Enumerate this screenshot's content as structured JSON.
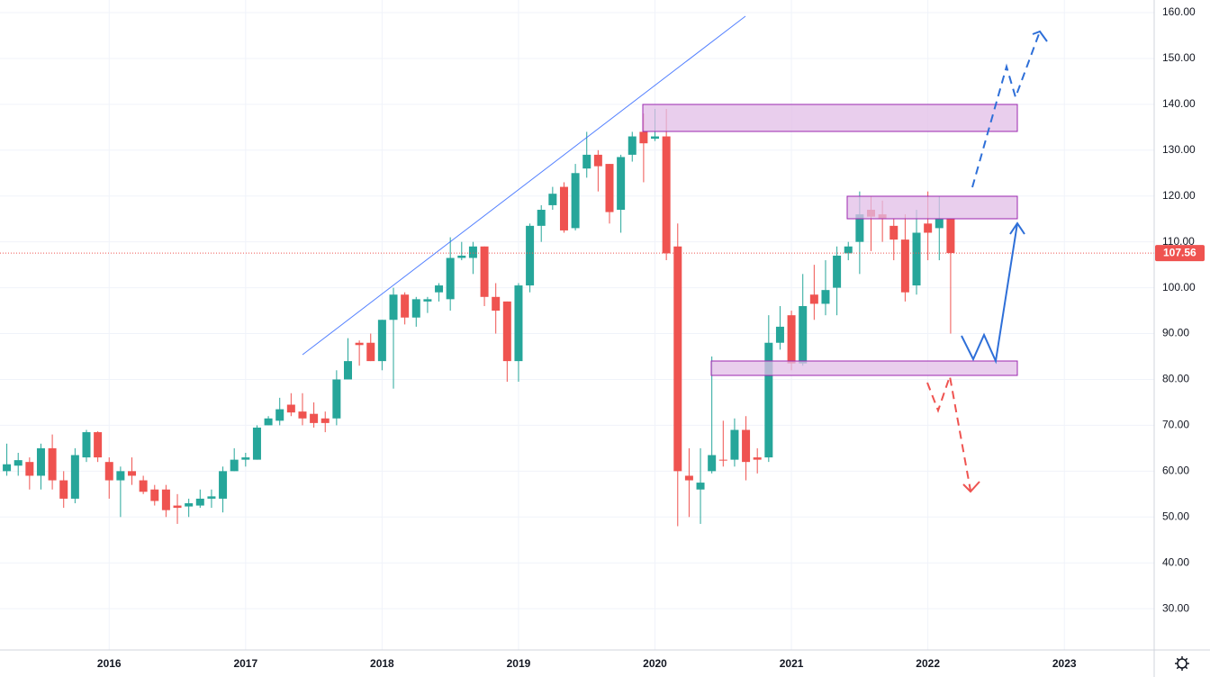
{
  "chart_data": {
    "type": "candlestick",
    "up_color": "#26a69a",
    "down_color": "#ef5350",
    "grid": true,
    "open": [
      60,
      61.2,
      62,
      59,
      65,
      58,
      54,
      63,
      68.5,
      62,
      58,
      60,
      58,
      56,
      56,
      52.5,
      52.3,
      52.5,
      54,
      54,
      60,
      62.5,
      62.5,
      70,
      71,
      74.5,
      73,
      72.5,
      71.5,
      71.5,
      80,
      88,
      88,
      84,
      93,
      98.5,
      93.5,
      97,
      99,
      97.5,
      106.5,
      106.5,
      109,
      98,
      97,
      84,
      100.5,
      113.5,
      118,
      122,
      113,
      126,
      129,
      127,
      117,
      129,
      134,
      132.5,
      133,
      109,
      59,
      56,
      60,
      62.5,
      62.5,
      69,
      63,
      63,
      88,
      94,
      83.5,
      98.5,
      96.5,
      100,
      107.5,
      110,
      117,
      116,
      113.5,
      110.5,
      100.5,
      114,
      113,
      115
    ],
    "high": [
      66,
      64,
      63,
      66,
      68,
      60,
      65,
      69,
      68.7,
      63,
      61,
      63,
      59,
      57,
      57,
      55,
      54,
      56,
      56,
      61,
      65,
      64,
      70,
      72,
      76,
      77,
      77,
      75,
      73,
      82,
      89,
      88.5,
      90,
      93,
      100,
      99,
      98,
      98,
      101,
      111,
      110,
      110,
      109,
      101,
      97,
      101,
      114,
      118,
      122,
      123,
      127,
      134,
      130,
      127,
      129,
      134,
      138,
      139,
      139,
      114,
      65,
      65,
      85,
      71,
      71.5,
      72,
      65,
      94,
      96,
      95,
      103,
      105,
      106,
      109,
      110,
      121,
      120,
      119,
      115,
      116,
      117,
      121,
      120,
      115
    ],
    "low": [
      59,
      59,
      56,
      56,
      56,
      52,
      53,
      62,
      62,
      54,
      50,
      57,
      55,
      52.5,
      50,
      48.5,
      50,
      52,
      52,
      51,
      60,
      61,
      62.5,
      70,
      70,
      72,
      70,
      69.5,
      68.5,
      70,
      80,
      83,
      84,
      82,
      78,
      92,
      91.5,
      94.5,
      97,
      95,
      106,
      103,
      96,
      90,
      79.5,
      79.5,
      99,
      110,
      117,
      112,
      112.5,
      124,
      121,
      114,
      112,
      127.5,
      123,
      132,
      106,
      48,
      50,
      48.5,
      59.5,
      61,
      61,
      58,
      59.5,
      62,
      86.5,
      82,
      83,
      93,
      94,
      94,
      106,
      103,
      108,
      110,
      106,
      97,
      98.5,
      106,
      106,
      90
    ],
    "close": [
      61.5,
      62.4,
      59,
      65,
      58,
      54,
      63.5,
      68.5,
      63,
      58,
      60,
      59,
      55.5,
      53.5,
      51.5,
      52,
      53,
      54,
      54.5,
      60,
      62.5,
      63,
      69.5,
      71.5,
      73.5,
      72.8,
      71.5,
      70.5,
      70.5,
      80,
      84,
      87.5,
      84,
      93,
      98.5,
      93.5,
      97.5,
      97.5,
      100.5,
      106.5,
      107,
      109,
      98,
      95,
      84,
      100.5,
      113.5,
      117,
      120.5,
      112.5,
      125,
      129,
      126.5,
      116.5,
      128.5,
      133,
      131.5,
      133,
      107.5,
      60,
      58,
      57.5,
      63.5,
      62.3,
      69,
      62,
      62.5,
      88,
      91.5,
      83.5,
      96,
      96.5,
      99.5,
      107,
      109,
      116,
      115.5,
      115,
      110.5,
      99,
      112,
      112,
      115,
      107.56
    ],
    "xlim": [
      -0.6,
      100.9
    ],
    "xticks": [
      {
        "value": 9,
        "label": "2016"
      },
      {
        "value": 21,
        "label": "2017"
      },
      {
        "value": 33,
        "label": "2018"
      },
      {
        "value": 45,
        "label": "2019"
      },
      {
        "value": 57,
        "label": "2020"
      },
      {
        "value": 69,
        "label": "2021"
      },
      {
        "value": 81,
        "label": "2022"
      },
      {
        "value": 93,
        "label": "2023"
      }
    ],
    "ylim": [
      21,
      162.75
    ],
    "yticks": [
      {
        "value": 30,
        "label": "30.00"
      },
      {
        "value": 40,
        "label": "40.00"
      },
      {
        "value": 50,
        "label": "50.00"
      },
      {
        "value": 60,
        "label": "60.00"
      },
      {
        "value": 70,
        "label": "70.00"
      },
      {
        "value": 80,
        "label": "80.00"
      },
      {
        "value": 90,
        "label": "90.00"
      },
      {
        "value": 100,
        "label": "100.00"
      },
      {
        "value": 110,
        "label": "110.00"
      },
      {
        "value": 120,
        "label": "120.00"
      },
      {
        "value": 130,
        "label": "130.00"
      },
      {
        "value": 140,
        "label": "140.00"
      },
      {
        "value": 150,
        "label": "150.00"
      },
      {
        "value": 160,
        "label": "160.00"
      }
    ],
    "last_price": 107.56
  }
}
